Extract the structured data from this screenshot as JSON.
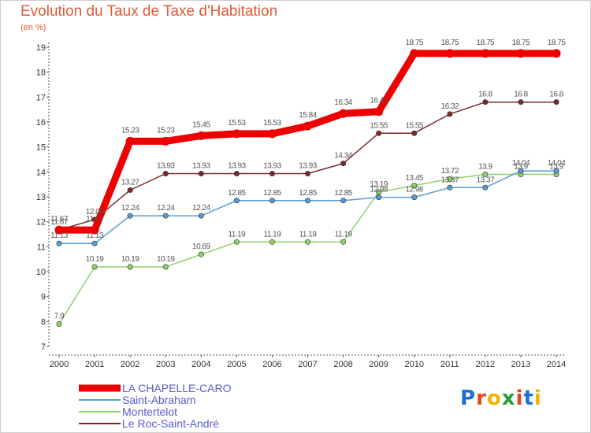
{
  "title": "Evolution du Taux de Taxe d'Habitation",
  "subtitle": "(en %)",
  "logo": {
    "text": "Proxiti",
    "colors": [
      "#1e6fd0",
      "#e8421f",
      "#f0b400",
      "#2a9d3a",
      "#e8421f",
      "#1e6fd0",
      "#f0b400"
    ]
  },
  "chart_data": {
    "type": "line",
    "title": "Evolution du Taux de Taxe d'Habitation",
    "ylabel": "(en %)",
    "xlabel": "",
    "x": [
      2000,
      2001,
      2002,
      2003,
      2004,
      2005,
      2006,
      2007,
      2008,
      2009,
      2010,
      2011,
      2012,
      2013,
      2014
    ],
    "ylim": [
      7,
      19
    ],
    "yticks": [
      7,
      8,
      9,
      10,
      11,
      12,
      13,
      14,
      15,
      16,
      17,
      18,
      19
    ],
    "grid": false,
    "legend": "bottom-left",
    "series": [
      {
        "name": "LA CHAPELLE-CARO",
        "color": "#ee0000",
        "values": [
          11.67,
          11.67,
          15.23,
          15.23,
          15.45,
          15.53,
          15.53,
          15.84,
          16.34,
          16.42,
          18.75,
          18.75,
          18.75,
          18.75,
          18.75
        ],
        "labels": [
          "11.67",
          "11.67",
          "15.23",
          "15.23",
          "15.45",
          "15.53",
          "15.53",
          "15.84",
          "16.34",
          "16.42",
          "18.75",
          "18.75",
          "18.75",
          "18.75",
          "18.75"
        ]
      },
      {
        "name": "Saint-Abraham",
        "color": "#5b9bd5",
        "values": [
          11.13,
          11.13,
          12.24,
          12.24,
          12.24,
          12.85,
          12.85,
          12.85,
          12.85,
          12.98,
          12.98,
          13.37,
          13.37,
          14.04,
          14.04
        ],
        "labels": [
          "11.13",
          "11.13",
          "12.24",
          "12.24",
          "12.24",
          "12.85",
          "12.85",
          "12.85",
          "12.85",
          "12.98",
          "12.98",
          "13.37",
          "13.37",
          "14.04",
          "14.04"
        ]
      },
      {
        "name": "Montertelot",
        "color": "#8fd06a",
        "values": [
          7.9,
          10.19,
          10.19,
          10.19,
          10.69,
          11.19,
          11.19,
          11.19,
          11.19,
          13.19,
          13.45,
          13.72,
          13.9,
          13.9,
          13.9
        ],
        "labels": [
          "7.9",
          "10.19",
          "10.19",
          "10.19",
          "10.69",
          "11.19",
          "11.19",
          "11.19",
          "11.19",
          "13.19",
          "13.45",
          "13.72",
          "13.9",
          "13.9",
          "13.9"
        ]
      },
      {
        "name": "Le Roc-Saint-André",
        "color": "#7a2a2a",
        "values": [
          11.67,
          12.09,
          13.27,
          13.93,
          13.93,
          13.93,
          13.93,
          13.93,
          14.34,
          15.55,
          15.55,
          16.32,
          16.8,
          16.8,
          16.8
        ],
        "labels": [
          "11.67",
          "12.09",
          "13.27",
          "13.93",
          "13.93",
          "13.93",
          "13.93",
          "13.93",
          "14.34",
          "15.55",
          "15.55",
          "16.32",
          "16.8",
          "16.8",
          "16.8"
        ]
      }
    ]
  }
}
